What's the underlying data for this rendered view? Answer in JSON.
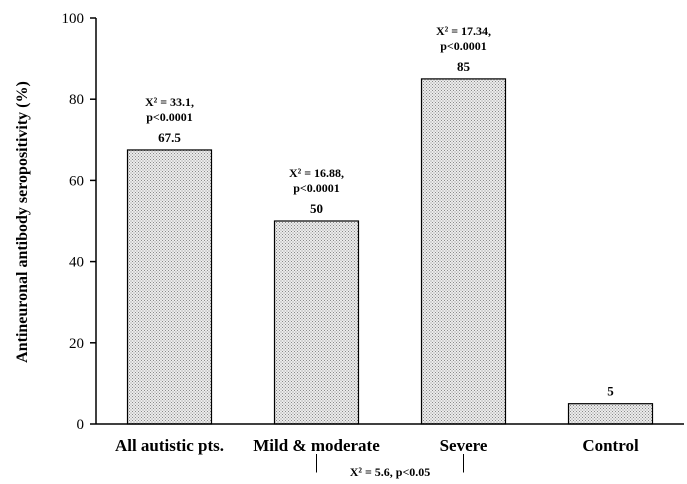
{
  "chart_data": {
    "type": "bar",
    "title": "",
    "xlabel": "",
    "ylabel": "Antineuronal antibody seropositivity (%)",
    "ylim": [
      0,
      100
    ],
    "yticks": [
      0,
      20,
      40,
      60,
      80,
      100
    ],
    "categories": [
      "All autistic pts.",
      "Mild & moderate",
      "Severe",
      "Control"
    ],
    "values": [
      67.5,
      50,
      85,
      5
    ],
    "value_labels": [
      "67.5",
      "50",
      "85",
      "5"
    ],
    "annotations": [
      {
        "category": "All autistic pts.",
        "line1": "X² = 33.1,",
        "line2": "p<0.0001"
      },
      {
        "category": "Mild & moderate",
        "line1": "X² = 16.88,",
        "line2": "p<0.0001"
      },
      {
        "category": "Severe",
        "line1": "X² = 17.34,",
        "line2": "p<0.0001"
      }
    ],
    "comparison": {
      "between": [
        "Mild & moderate",
        "Severe"
      ],
      "label": "X² = 5.6, p<0.05"
    },
    "bar_fill": "#d9d9d9",
    "bar_stroke": "#000000",
    "grid": false,
    "legend": "none"
  }
}
